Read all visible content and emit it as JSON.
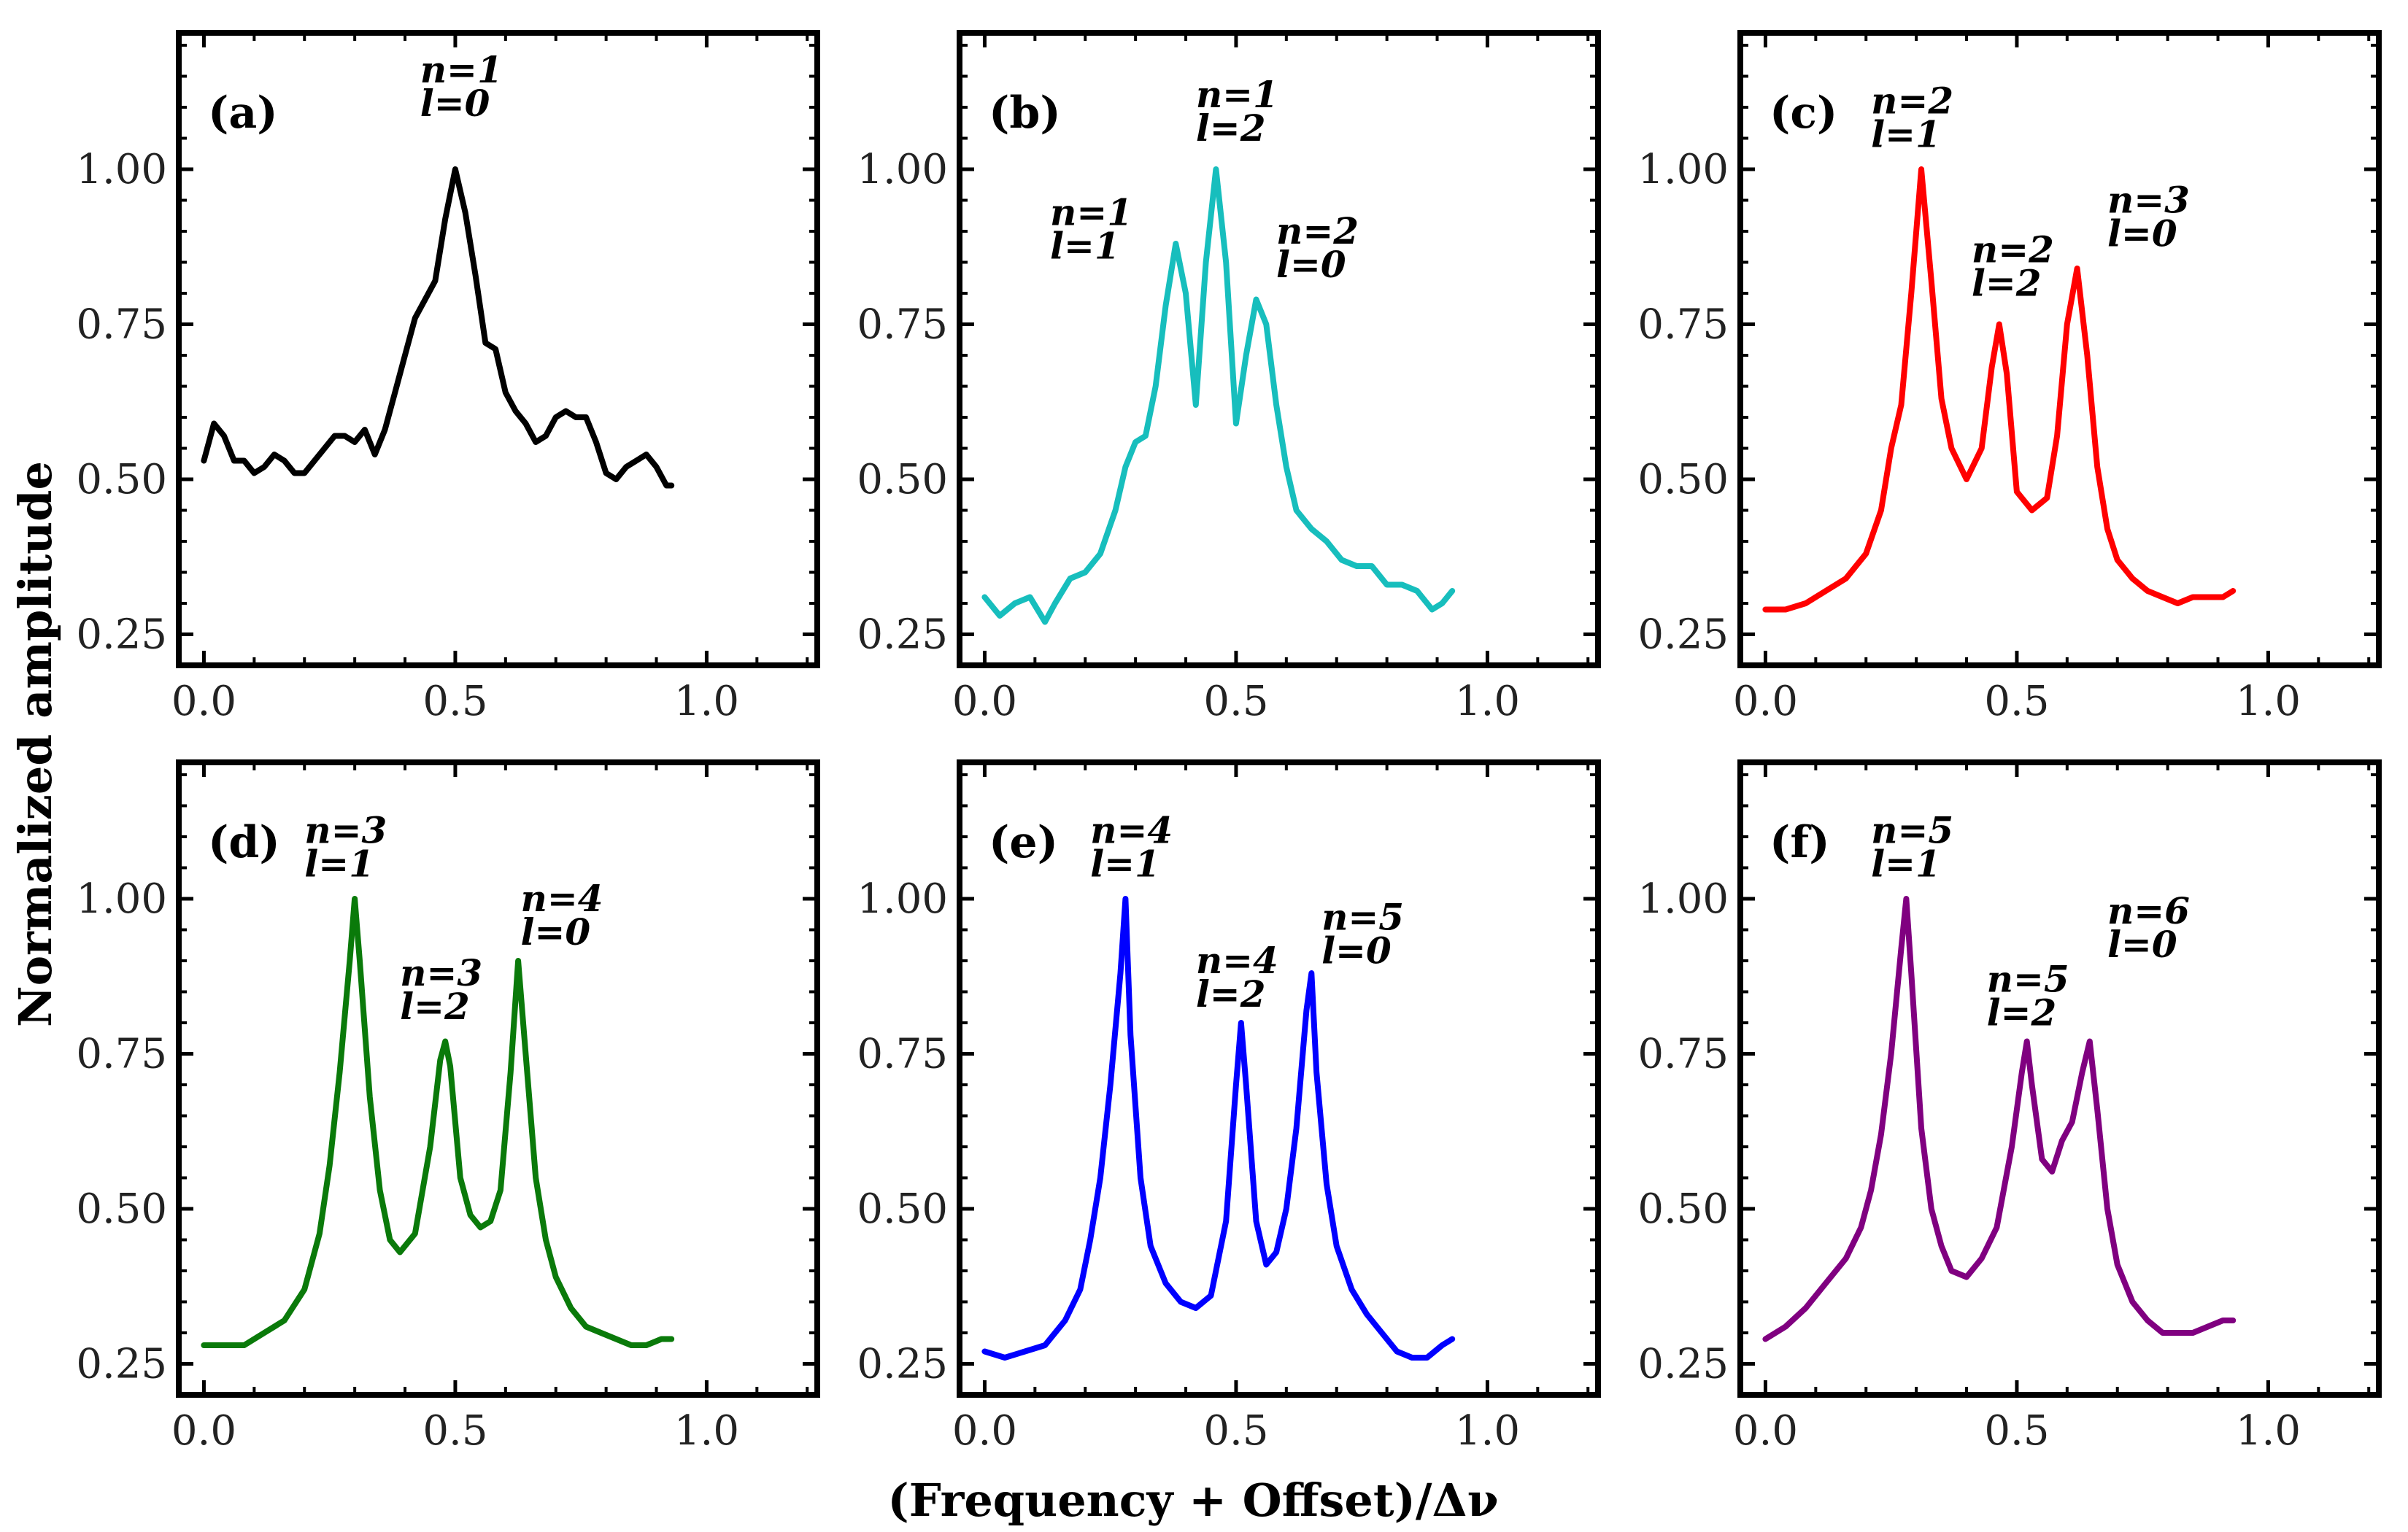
{
  "figure": {
    "ylabel": "Normalized amplitude",
    "xlabel": "(Frequency + Offset)/Δν"
  },
  "chart_data": [
    {
      "type": "line",
      "label": "(a)",
      "color": "#000000",
      "xlim": [
        -0.05,
        1.22
      ],
      "ylim": [
        0.2,
        1.22
      ],
      "xticks": [
        "0.0",
        "0.5",
        "1.0"
      ],
      "yticks": [
        "0.25",
        "0.50",
        "0.75",
        "1.00"
      ],
      "x": [
        0.0,
        0.02,
        0.04,
        0.06,
        0.08,
        0.1,
        0.12,
        0.14,
        0.16,
        0.18,
        0.2,
        0.22,
        0.24,
        0.26,
        0.28,
        0.3,
        0.32,
        0.34,
        0.36,
        0.38,
        0.4,
        0.42,
        0.44,
        0.46,
        0.48,
        0.5,
        0.52,
        0.54,
        0.56,
        0.58,
        0.6,
        0.62,
        0.64,
        0.66,
        0.68,
        0.7,
        0.72,
        0.74,
        0.76,
        0.78,
        0.8,
        0.82,
        0.84,
        0.86,
        0.88,
        0.9,
        0.92,
        0.93
      ],
      "y": [
        0.53,
        0.59,
        0.57,
        0.53,
        0.53,
        0.51,
        0.52,
        0.54,
        0.53,
        0.51,
        0.51,
        0.53,
        0.55,
        0.57,
        0.57,
        0.56,
        0.58,
        0.54,
        0.58,
        0.64,
        0.7,
        0.76,
        0.79,
        0.82,
        0.92,
        1.0,
        0.93,
        0.83,
        0.72,
        0.71,
        0.64,
        0.61,
        0.59,
        0.56,
        0.57,
        0.6,
        0.61,
        0.6,
        0.6,
        0.56,
        0.51,
        0.5,
        0.52,
        0.53,
        0.54,
        0.52,
        0.49,
        0.49
      ],
      "annotations": [
        {
          "lines": [
            "n=1",
            "l=0"
          ],
          "x": 0.43,
          "y": 1.14
        }
      ]
    },
    {
      "type": "line",
      "label": "(b)",
      "color": "#17bebd",
      "xlim": [
        -0.05,
        1.22
      ],
      "ylim": [
        0.2,
        1.22
      ],
      "xticks": [
        "0.0",
        "0.5",
        "1.0"
      ],
      "yticks": [
        "0.25",
        "0.50",
        "0.75",
        "1.00"
      ],
      "x": [
        0.0,
        0.03,
        0.06,
        0.09,
        0.12,
        0.14,
        0.17,
        0.2,
        0.23,
        0.26,
        0.28,
        0.3,
        0.32,
        0.34,
        0.36,
        0.38,
        0.4,
        0.42,
        0.44,
        0.46,
        0.48,
        0.5,
        0.52,
        0.54,
        0.56,
        0.58,
        0.6,
        0.62,
        0.65,
        0.68,
        0.71,
        0.74,
        0.77,
        0.8,
        0.83,
        0.86,
        0.89,
        0.91,
        0.93
      ],
      "y": [
        0.31,
        0.28,
        0.3,
        0.31,
        0.27,
        0.3,
        0.34,
        0.35,
        0.38,
        0.45,
        0.52,
        0.56,
        0.57,
        0.65,
        0.78,
        0.88,
        0.8,
        0.62,
        0.85,
        1.0,
        0.85,
        0.59,
        0.7,
        0.79,
        0.75,
        0.62,
        0.52,
        0.45,
        0.42,
        0.4,
        0.37,
        0.36,
        0.36,
        0.33,
        0.33,
        0.32,
        0.29,
        0.3,
        0.32
      ],
      "annotations": [
        {
          "lines": [
            "n=1",
            "l=1"
          ],
          "x": 0.13,
          "y": 0.91
        },
        {
          "lines": [
            "n=1",
            "l=2"
          ],
          "x": 0.42,
          "y": 1.1
        },
        {
          "lines": [
            "n=2",
            "l=0"
          ],
          "x": 0.58,
          "y": 0.88
        }
      ]
    },
    {
      "type": "line",
      "label": "(c)",
      "color": "#ff0000",
      "xlim": [
        -0.05,
        1.22
      ],
      "ylim": [
        0.2,
        1.22
      ],
      "xticks": [
        "0.0",
        "0.5",
        "1.0"
      ],
      "yticks": [
        "0.25",
        "0.50",
        "0.75",
        "1.00"
      ],
      "x": [
        0.0,
        0.04,
        0.08,
        0.12,
        0.16,
        0.2,
        0.23,
        0.25,
        0.27,
        0.29,
        0.31,
        0.33,
        0.35,
        0.37,
        0.4,
        0.43,
        0.45,
        0.465,
        0.48,
        0.5,
        0.53,
        0.56,
        0.58,
        0.6,
        0.62,
        0.64,
        0.66,
        0.68,
        0.7,
        0.73,
        0.76,
        0.79,
        0.82,
        0.85,
        0.88,
        0.91,
        0.93
      ],
      "y": [
        0.29,
        0.29,
        0.3,
        0.32,
        0.34,
        0.38,
        0.45,
        0.55,
        0.62,
        0.8,
        1.0,
        0.82,
        0.63,
        0.55,
        0.5,
        0.55,
        0.68,
        0.75,
        0.67,
        0.48,
        0.45,
        0.47,
        0.57,
        0.75,
        0.84,
        0.7,
        0.52,
        0.42,
        0.37,
        0.34,
        0.32,
        0.31,
        0.3,
        0.31,
        0.31,
        0.31,
        0.32
      ],
      "annotations": [
        {
          "lines": [
            "n=2",
            "l=1"
          ],
          "x": 0.21,
          "y": 1.09
        },
        {
          "lines": [
            "n=2",
            "l=2"
          ],
          "x": 0.41,
          "y": 0.85
        },
        {
          "lines": [
            "n=3",
            "l=0"
          ],
          "x": 0.68,
          "y": 0.93
        }
      ]
    },
    {
      "type": "line",
      "label": "(d)",
      "color": "#0a7a0a",
      "xlim": [
        -0.05,
        1.22
      ],
      "ylim": [
        0.2,
        1.22
      ],
      "xticks": [
        "0.0",
        "0.5",
        "1.0"
      ],
      "yticks": [
        "0.25",
        "0.50",
        "0.75",
        "1.00"
      ],
      "x": [
        0.0,
        0.04,
        0.08,
        0.12,
        0.16,
        0.2,
        0.23,
        0.25,
        0.27,
        0.29,
        0.3,
        0.31,
        0.33,
        0.35,
        0.37,
        0.39,
        0.42,
        0.45,
        0.47,
        0.48,
        0.49,
        0.51,
        0.53,
        0.55,
        0.57,
        0.59,
        0.61,
        0.625,
        0.64,
        0.66,
        0.68,
        0.7,
        0.73,
        0.76,
        0.79,
        0.82,
        0.85,
        0.88,
        0.91,
        0.93
      ],
      "y": [
        0.28,
        0.28,
        0.28,
        0.3,
        0.32,
        0.37,
        0.46,
        0.57,
        0.72,
        0.9,
        1.0,
        0.9,
        0.68,
        0.53,
        0.45,
        0.43,
        0.46,
        0.6,
        0.74,
        0.77,
        0.73,
        0.55,
        0.49,
        0.47,
        0.48,
        0.53,
        0.72,
        0.9,
        0.75,
        0.55,
        0.45,
        0.39,
        0.34,
        0.31,
        0.3,
        0.29,
        0.28,
        0.28,
        0.29,
        0.29
      ],
      "annotations": [
        {
          "lines": [
            "n=3",
            "l=1"
          ],
          "x": 0.2,
          "y": 1.09
        },
        {
          "lines": [
            "n=3",
            "l=2"
          ],
          "x": 0.39,
          "y": 0.86
        },
        {
          "lines": [
            "n=4",
            "l=0"
          ],
          "x": 0.63,
          "y": 0.98
        }
      ]
    },
    {
      "type": "line",
      "label": "(e)",
      "color": "#0000ff",
      "xlim": [
        -0.05,
        1.22
      ],
      "ylim": [
        0.2,
        1.22
      ],
      "xticks": [
        "0.0",
        "0.5",
        "1.0"
      ],
      "yticks": [
        "0.25",
        "0.50",
        "0.75",
        "1.00"
      ],
      "x": [
        0.0,
        0.04,
        0.08,
        0.12,
        0.16,
        0.19,
        0.21,
        0.23,
        0.25,
        0.27,
        0.28,
        0.29,
        0.31,
        0.33,
        0.36,
        0.39,
        0.42,
        0.45,
        0.48,
        0.5,
        0.51,
        0.52,
        0.54,
        0.56,
        0.58,
        0.6,
        0.62,
        0.64,
        0.65,
        0.66,
        0.68,
        0.7,
        0.73,
        0.76,
        0.79,
        0.82,
        0.85,
        0.88,
        0.91,
        0.93
      ],
      "y": [
        0.27,
        0.26,
        0.27,
        0.28,
        0.32,
        0.37,
        0.45,
        0.55,
        0.7,
        0.88,
        1.0,
        0.78,
        0.55,
        0.44,
        0.38,
        0.35,
        0.34,
        0.36,
        0.48,
        0.7,
        0.8,
        0.7,
        0.48,
        0.41,
        0.43,
        0.5,
        0.63,
        0.82,
        0.88,
        0.72,
        0.54,
        0.44,
        0.37,
        0.33,
        0.3,
        0.27,
        0.26,
        0.26,
        0.28,
        0.29
      ],
      "annotations": [
        {
          "lines": [
            "n=4",
            "l=1"
          ],
          "x": 0.21,
          "y": 1.09
        },
        {
          "lines": [
            "n=4",
            "l=2"
          ],
          "x": 0.42,
          "y": 0.88
        },
        {
          "lines": [
            "n=5",
            "l=0"
          ],
          "x": 0.67,
          "y": 0.95
        }
      ]
    },
    {
      "type": "line",
      "label": "(f)",
      "color": "#800080",
      "xlim": [
        -0.05,
        1.22
      ],
      "ylim": [
        0.2,
        1.22
      ],
      "xticks": [
        "0.0",
        "0.5",
        "1.0"
      ],
      "yticks": [
        "0.25",
        "0.50",
        "0.75",
        "1.00"
      ],
      "x": [
        0.0,
        0.04,
        0.08,
        0.12,
        0.16,
        0.19,
        0.21,
        0.23,
        0.25,
        0.27,
        0.28,
        0.29,
        0.31,
        0.33,
        0.35,
        0.37,
        0.4,
        0.43,
        0.46,
        0.49,
        0.51,
        0.52,
        0.53,
        0.55,
        0.57,
        0.59,
        0.61,
        0.63,
        0.645,
        0.66,
        0.68,
        0.7,
        0.73,
        0.76,
        0.79,
        0.82,
        0.85,
        0.88,
        0.91,
        0.93
      ],
      "y": [
        0.29,
        0.31,
        0.34,
        0.38,
        0.42,
        0.47,
        0.53,
        0.62,
        0.75,
        0.92,
        1.0,
        0.88,
        0.63,
        0.5,
        0.44,
        0.4,
        0.39,
        0.42,
        0.47,
        0.6,
        0.72,
        0.77,
        0.7,
        0.58,
        0.56,
        0.61,
        0.64,
        0.72,
        0.77,
        0.66,
        0.5,
        0.41,
        0.35,
        0.32,
        0.3,
        0.3,
        0.3,
        0.31,
        0.32,
        0.32
      ],
      "annotations": [
        {
          "lines": [
            "n=5",
            "l=1"
          ],
          "x": 0.21,
          "y": 1.09
        },
        {
          "lines": [
            "n=5",
            "l=2"
          ],
          "x": 0.44,
          "y": 0.85
        },
        {
          "lines": [
            "n=6",
            "l=0"
          ],
          "x": 0.68,
          "y": 0.96
        }
      ]
    }
  ]
}
